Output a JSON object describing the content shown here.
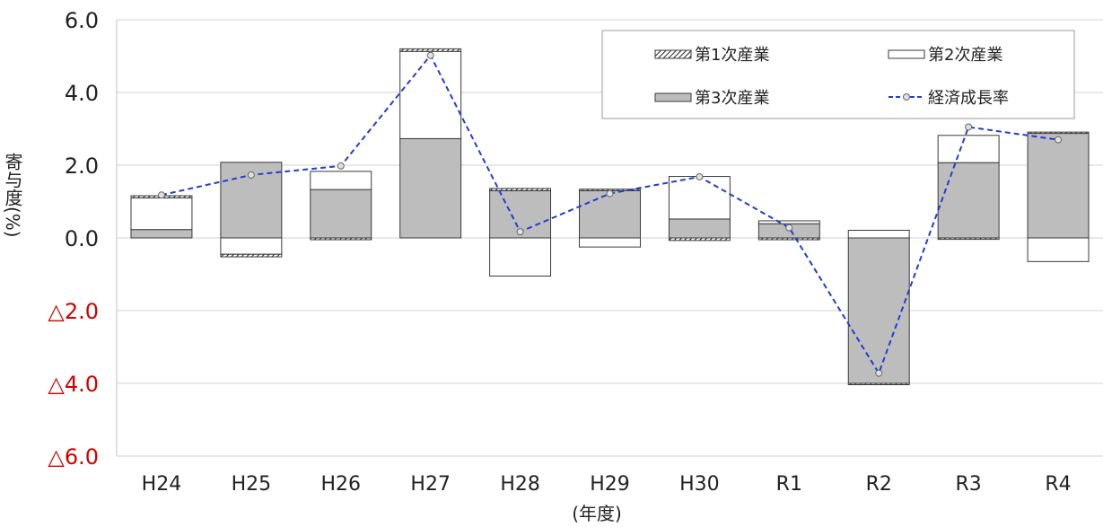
{
  "chart_data": {
    "type": "bar",
    "subtype": "stacked-bar-with-line",
    "title": "",
    "xlabel": "(年度)",
    "ylabel": "寄与度(%)",
    "ylim": [
      -6.0,
      6.0
    ],
    "yticks": [
      {
        "value": 6.0,
        "label": "6.0"
      },
      {
        "value": 4.0,
        "label": "4.0"
      },
      {
        "value": 2.0,
        "label": "2.0"
      },
      {
        "value": 0.0,
        "label": "0.0"
      },
      {
        "value": -2.0,
        "label": "△2.0"
      },
      {
        "value": -4.0,
        "label": "△4.0"
      },
      {
        "value": -6.0,
        "label": "△6.0"
      }
    ],
    "grid": true,
    "legend_position": "top-right",
    "categories": [
      "H24",
      "H25",
      "H26",
      "H27",
      "H28",
      "H29",
      "H30",
      "R1",
      "R2",
      "R3",
      "R4"
    ],
    "series": [
      {
        "name": "第1次産業",
        "kind": "bar",
        "fill": "hatched",
        "values": [
          0.06,
          -0.07,
          -0.05,
          0.07,
          0.06,
          0.04,
          -0.07,
          -0.05,
          -0.02,
          -0.04,
          0.01
        ]
      },
      {
        "name": "第2次産業",
        "kind": "bar",
        "fill": "#ffffff",
        "values": [
          0.87,
          -0.45,
          0.5,
          2.4,
          -1.05,
          -0.25,
          1.17,
          0.08,
          0.21,
          0.75,
          -0.65
        ]
      },
      {
        "name": "第3次産業",
        "kind": "bar",
        "fill": "#bdbdbd",
        "values": [
          0.23,
          2.08,
          1.33,
          2.73,
          1.3,
          1.3,
          0.52,
          0.39,
          -4.0,
          2.07,
          2.9
        ]
      },
      {
        "name": "経済成長率",
        "kind": "line",
        "color": "#1f3fd0",
        "values": [
          1.18,
          1.73,
          1.98,
          5.02,
          0.17,
          1.22,
          1.68,
          0.28,
          -3.72,
          3.05,
          2.7
        ]
      }
    ]
  },
  "colors": {
    "line": "#1f3fd0",
    "tertiary_fill": "#bdbdbd",
    "negative_tick": "#d40000"
  }
}
